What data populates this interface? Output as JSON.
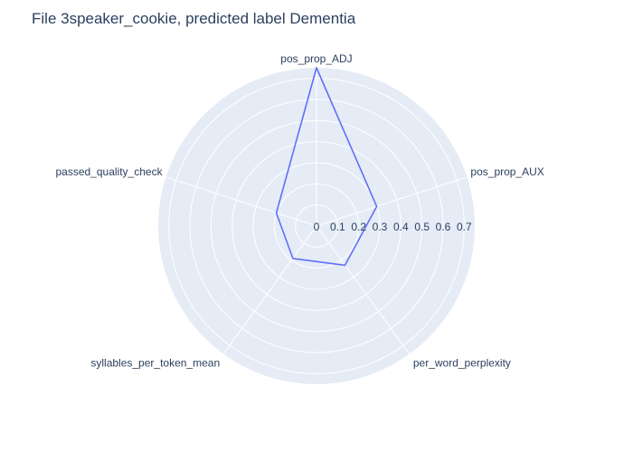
{
  "chart_data": {
    "type": "radar",
    "title": "File 3speaker_cookie, predicted label Dementia",
    "categories": [
      "pos_prop_ADJ",
      "pos_prop_AUX",
      "per_word_perplexity",
      "syllables_per_token_mean",
      "passed_quality_check"
    ],
    "series": [
      {
        "values": [
          0.75,
          0.3,
          0.23,
          0.19,
          0.2
        ]
      }
    ],
    "radial_range": [
      0,
      0.75
    ],
    "radial_ticks": [
      "0",
      "0.1",
      "0.2",
      "0.3",
      "0.4",
      "0.5",
      "0.6",
      "0.7"
    ],
    "grid": true,
    "legend": false,
    "colors": {
      "polar_bg": "#e5ecf6",
      "grid": "#ffffff",
      "line": "#636efa",
      "text": "#2a3f5f"
    }
  }
}
